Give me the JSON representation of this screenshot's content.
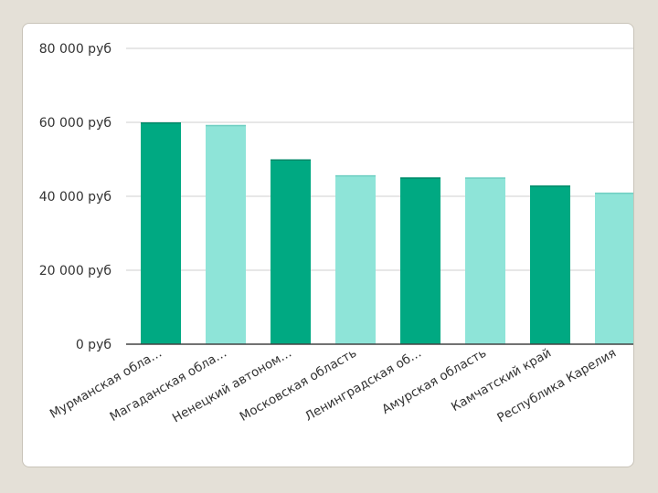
{
  "chart_data": {
    "type": "bar",
    "title": "",
    "xlabel": "",
    "ylabel": "",
    "categories": [
      "Мурманская обла…",
      "Магаданская обла…",
      "Ненецкий автоном…",
      "Московская область",
      "Ленинградская об…",
      "Амурская область",
      "Камчатский край",
      "Республика Карелия"
    ],
    "values": [
      60000,
      59300,
      50000,
      45700,
      45100,
      45100,
      42900,
      41000
    ],
    "ylim": [
      0,
      80000
    ],
    "y_ticks": [
      0,
      20000,
      40000,
      60000,
      80000
    ],
    "y_tick_labels": [
      "0 руб",
      "20 000 руб",
      "40 000 руб",
      "60 000 руб",
      "80 000 руб"
    ],
    "grid": true,
    "legend": "none",
    "colors": [
      "#00a982",
      "#8ee4d8"
    ]
  }
}
